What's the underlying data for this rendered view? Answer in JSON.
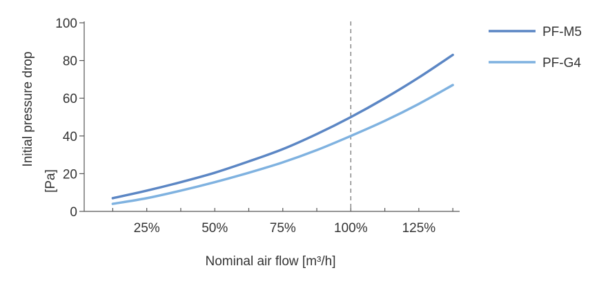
{
  "chart_data": {
    "type": "line",
    "xlabel": "Nominal air flow [m³/h]",
    "ylabel_line1": "Initial pressure drop",
    "ylabel_line2": "[Pa]",
    "x_tick_labels": [
      "25%",
      "50%",
      "75%",
      "100%",
      "125%"
    ],
    "x_tick_values": [
      25,
      50,
      75,
      100,
      125
    ],
    "xlim": [
      2,
      140
    ],
    "ylim": [
      0,
      100
    ],
    "y_ticks": [
      0,
      20,
      40,
      60,
      80,
      100
    ],
    "grid": false,
    "reference_line": {
      "x": 100,
      "style": "dashed"
    },
    "legend_position": "right",
    "series": [
      {
        "name": "PF-M5",
        "color": "#5b86c4",
        "x": [
          12.5,
          25,
          37.5,
          50,
          62.5,
          75,
          87.5,
          100,
          112.5,
          125,
          137.5
        ],
        "y": [
          7,
          11,
          15.5,
          20.5,
          26.5,
          33,
          41,
          50,
          60,
          71,
          83
        ]
      },
      {
        "name": "PF-G4",
        "color": "#7fb2e0",
        "x": [
          12.5,
          25,
          37.5,
          50,
          62.5,
          75,
          87.5,
          100,
          112.5,
          125,
          137.5
        ],
        "y": [
          4,
          7,
          11,
          15.5,
          20.5,
          26,
          32.5,
          40,
          48,
          57,
          67
        ]
      }
    ]
  }
}
